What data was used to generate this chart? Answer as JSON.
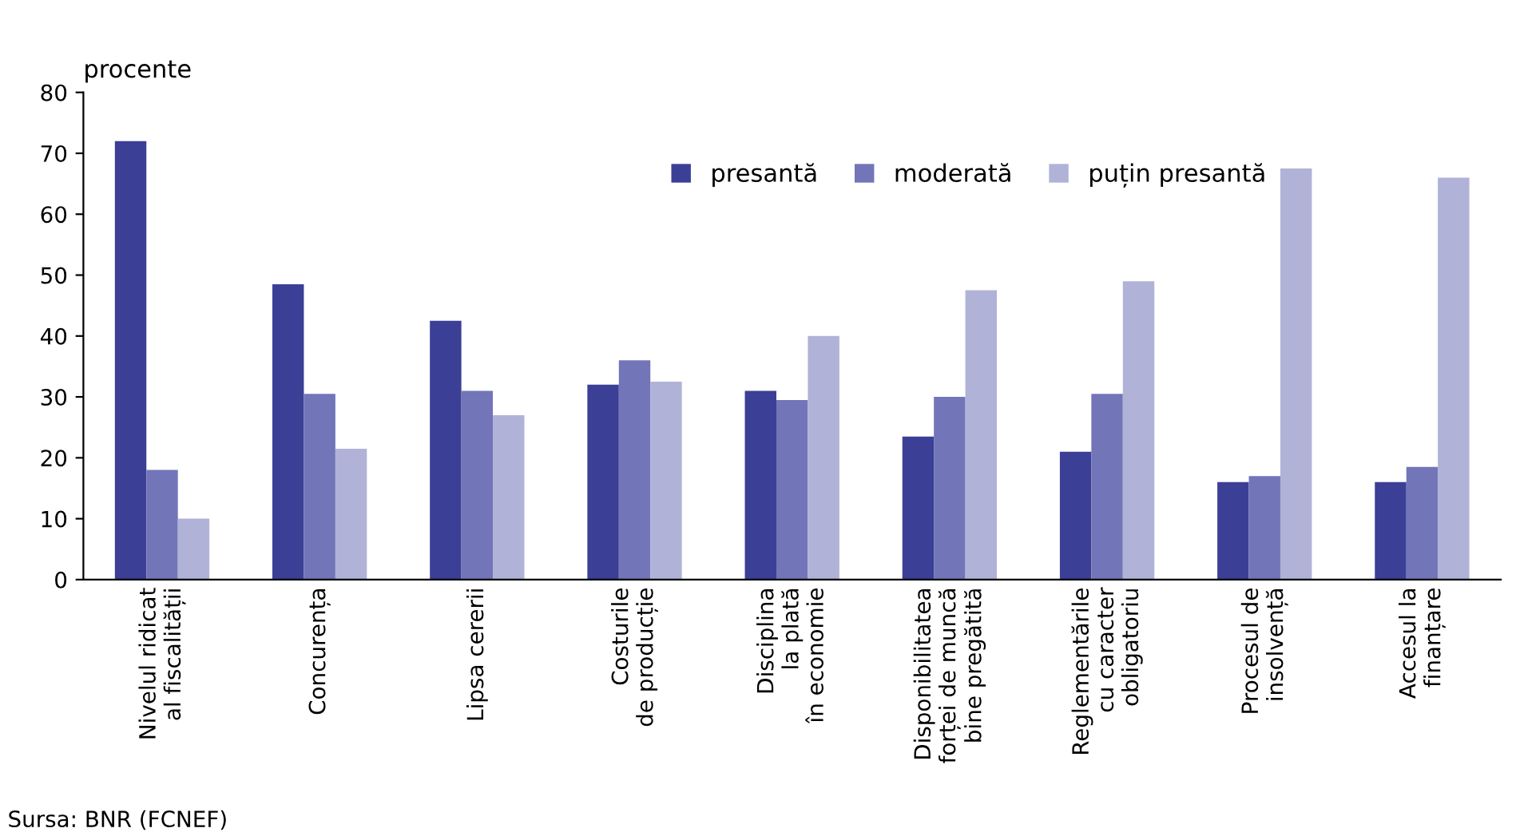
{
  "chart_data": {
    "type": "bar",
    "ylabel": "procente",
    "categories": [
      "Nivelul ridicat\nal fiscalității",
      "Concurența",
      "Lipsa cererii",
      "Costurile\nde producție",
      "Disciplina\nla plată\nîn economie",
      "Disponibilitatea\nforței de muncă\nbine pregătită",
      "Reglementările\ncu caracter\nobligatoriu",
      "Procesul de\ninsolvență",
      "Accesul la\nfinanțare"
    ],
    "series": [
      {
        "name": "presantă",
        "color": "#3b3f96",
        "values": [
          72,
          48.5,
          42.5,
          32,
          31,
          23.5,
          21,
          16,
          16
        ]
      },
      {
        "name": "moderată",
        "color": "#7276b8",
        "values": [
          18,
          30.5,
          31,
          36,
          29.5,
          30,
          30.5,
          17,
          18.5
        ]
      },
      {
        "name": "puțin presantă",
        "color": "#b0b2d8",
        "values": [
          10,
          21.5,
          27,
          32.5,
          40,
          47.5,
          49,
          67.5,
          66
        ]
      }
    ],
    "ylim": [
      0,
      80
    ],
    "yticks": [
      0,
      10,
      20,
      30,
      40,
      50,
      60,
      70,
      80
    ],
    "grid": false,
    "legend": "top right",
    "annotations": [
      "Sursa: BNR (FCNEF)"
    ]
  }
}
